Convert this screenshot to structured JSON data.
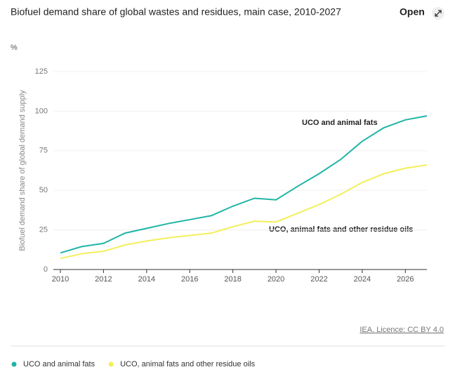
{
  "chart_data": {
    "type": "line",
    "title": "Biofuel demand share of global wastes and residues, main case, 2010-2027",
    "open_label": "Open",
    "y_unit": "%",
    "ylabel": "Biofuel demand share of global demand supply",
    "x": [
      2010,
      2011,
      2012,
      2013,
      2014,
      2015,
      2016,
      2017,
      2018,
      2019,
      2020,
      2021,
      2022,
      2023,
      2024,
      2025,
      2026,
      2027
    ],
    "series": [
      {
        "name": "UCO and animal fats",
        "color": "#1fb5a6",
        "values": [
          10.5,
          14.5,
          16.5,
          23,
          26,
          29,
          31.5,
          34,
          40,
          45,
          44,
          52.5,
          60.5,
          69.5,
          81,
          89.5,
          94.5,
          97
        ]
      },
      {
        "name": "UCO, animal fats and other residue oils",
        "color": "#f3ef5b",
        "values": [
          7,
          10,
          11.5,
          15.5,
          18,
          20,
          21.5,
          23,
          27,
          30.5,
          30,
          35.5,
          41,
          47.5,
          55,
          60.5,
          64,
          66
        ]
      }
    ],
    "annotations": [
      "UCO and animal fats",
      "UCO, animal fats and other residue oils"
    ],
    "xlim": [
      2010,
      2027
    ],
    "xticks": [
      2010,
      2012,
      2014,
      2016,
      2018,
      2020,
      2022,
      2024,
      2026
    ],
    "ylim": [
      0,
      125
    ],
    "yticks": [
      0,
      25,
      50,
      75,
      100,
      125
    ],
    "grid": true,
    "source": "IEA. Licence: CC BY 4.0"
  }
}
